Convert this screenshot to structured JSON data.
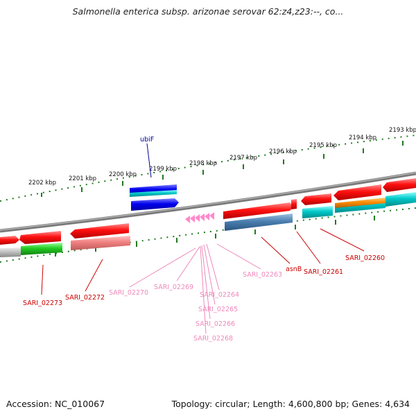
{
  "title": "Salmonella enterica subsp. arizonae serovar 62:z4,z23:--, co...",
  "footer": {
    "accession": "Accession: NC_010067",
    "topology": "Topology: circular; Length: 4,600,800 bp; Genes: 4,634"
  },
  "scale_labels": [
    "2202 kbp",
    "2201 kbp",
    "2200 kbp",
    "2199 kbp",
    "2198 kbp",
    "2197 kbp",
    "2196 kbp",
    "2195 kbp",
    "2194 kbp",
    "2193 kbp"
  ],
  "colors": {
    "backbone": "#808080",
    "tick": "#1f7a1f",
    "red_gene": "#ee0000",
    "blue_gene": "#0000ee",
    "cyan_gene": "#00c8c8",
    "green_gene": "#22cc22",
    "steel_gene": "#4a7fb0",
    "orange_gene": "#ff8c00",
    "pink_gene": "#ff88cc",
    "label_red": "#cc0000",
    "label_pink": "#ee88bb",
    "label_blue": "#000099"
  },
  "gene_labels": [
    {
      "text": "ubiF",
      "color": "label_blue"
    },
    {
      "text": "SARI_02273",
      "color": "label_red"
    },
    {
      "text": "SARI_02272",
      "color": "label_red"
    },
    {
      "text": "SARI_02270",
      "color": "label_pink"
    },
    {
      "text": "SARI_02269",
      "color": "label_pink"
    },
    {
      "text": "SARI_02264",
      "color": "label_pink"
    },
    {
      "text": "SARI_02265",
      "color": "label_pink"
    },
    {
      "text": "SARI_02266",
      "color": "label_pink"
    },
    {
      "text": "SARI_02268",
      "color": "label_pink"
    },
    {
      "text": "SARI_02263",
      "color": "label_pink"
    },
    {
      "text": "asnB",
      "color": "label_red"
    },
    {
      "text": "SARI_02261",
      "color": "label_red"
    },
    {
      "text": "SARI_02260",
      "color": "label_red"
    }
  ]
}
